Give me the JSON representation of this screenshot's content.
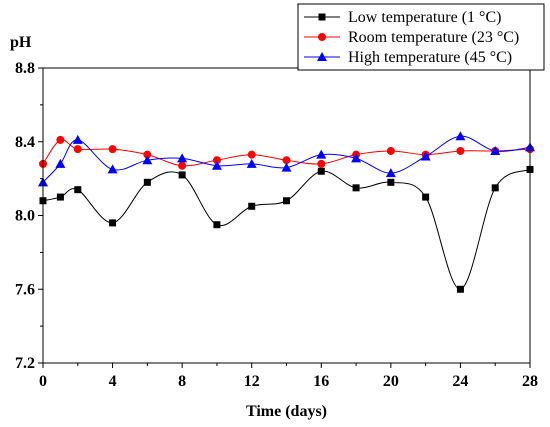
{
  "chart_data": {
    "type": "line",
    "ylabel": "pH",
    "xlabel": "Time (days)",
    "xlim": [
      0,
      28
    ],
    "ylim": [
      7.2,
      8.8
    ],
    "xticks": [
      "0",
      "4",
      "8",
      "12",
      "16",
      "20",
      "24",
      "28"
    ],
    "yticks": [
      "7.2",
      "7.6",
      "8.0",
      "8.4",
      "8.8"
    ],
    "grid": false,
    "legend_position": "top-right",
    "series": [
      {
        "name": "Low temperature (1 °C)",
        "color": "#000000",
        "marker": "square",
        "x": [
          0,
          1,
          2,
          4,
          6,
          8,
          10,
          12,
          14,
          16,
          18,
          20,
          22,
          24,
          26,
          28
        ],
        "y": [
          8.08,
          8.1,
          8.14,
          7.96,
          8.18,
          8.22,
          7.95,
          8.05,
          8.08,
          8.24,
          8.15,
          8.18,
          8.1,
          7.6,
          8.15,
          8.25
        ]
      },
      {
        "name": "Room temperature (23 °C)",
        "color": "#ff0000",
        "marker": "circle",
        "x": [
          0,
          1,
          2,
          4,
          6,
          8,
          10,
          12,
          14,
          16,
          18,
          20,
          22,
          24,
          26,
          28
        ],
        "y": [
          8.28,
          8.41,
          8.36,
          8.36,
          8.33,
          8.27,
          8.3,
          8.33,
          8.3,
          8.28,
          8.33,
          8.35,
          8.33,
          8.35,
          8.35,
          8.36
        ]
      },
      {
        "name": "High temperature (45 °C)",
        "color": "#0000ff",
        "marker": "triangle",
        "x": [
          0,
          1,
          2,
          4,
          6,
          8,
          10,
          12,
          14,
          16,
          18,
          20,
          22,
          24,
          26,
          28
        ],
        "y": [
          8.18,
          8.28,
          8.41,
          8.25,
          8.3,
          8.31,
          8.27,
          8.28,
          8.26,
          8.33,
          8.31,
          8.23,
          8.32,
          8.43,
          8.35,
          8.37
        ]
      }
    ]
  }
}
